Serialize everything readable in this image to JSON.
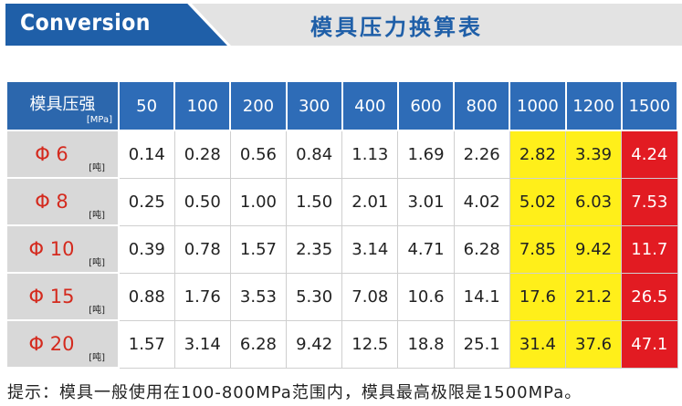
{
  "banner": {
    "title": "Conversion",
    "subtitle": "模具压力换算表"
  },
  "table": {
    "header_label": "模具压强",
    "header_unit": "[MPa]",
    "pressures": [
      "50",
      "100",
      "200",
      "300",
      "400",
      "600",
      "800",
      "1000",
      "1200",
      "1500"
    ],
    "row_unit": "[吨]",
    "rows": [
      {
        "label": "Φ 6",
        "values": [
          "0.14",
          "0.28",
          "0.56",
          "0.84",
          "1.13",
          "1.69",
          "2.26",
          "2.82",
          "3.39",
          "4.24"
        ]
      },
      {
        "label": "Φ 8",
        "values": [
          "0.25",
          "0.50",
          "1.00",
          "1.50",
          "2.01",
          "3.01",
          "4.02",
          "5.02",
          "6.03",
          "7.53"
        ]
      },
      {
        "label": "Φ 10",
        "values": [
          "0.39",
          "0.78",
          "1.57",
          "2.35",
          "3.14",
          "4.71",
          "6.28",
          "7.85",
          "9.42",
          "11.7"
        ]
      },
      {
        "label": "Φ 15",
        "values": [
          "0.88",
          "1.76",
          "3.53",
          "5.30",
          "7.08",
          "10.6",
          "14.1",
          "17.6",
          "21.2",
          "26.5"
        ]
      },
      {
        "label": "Φ 20",
        "values": [
          "1.57",
          "3.14",
          "6.28",
          "9.42",
          "12.5",
          "18.8",
          "25.1",
          "31.4",
          "37.6",
          "47.1"
        ]
      }
    ]
  },
  "note": "提示：模具一般使用在100-800MPa范围内，模具最高极限是1500MPa。",
  "colors": {
    "brand_blue": "#1f5fa8",
    "header_blue": "#2e6cb7",
    "highlight_yellow": "#ffef1a",
    "limit_red": "#e21b22",
    "row_label_red": "#d42a1e"
  }
}
